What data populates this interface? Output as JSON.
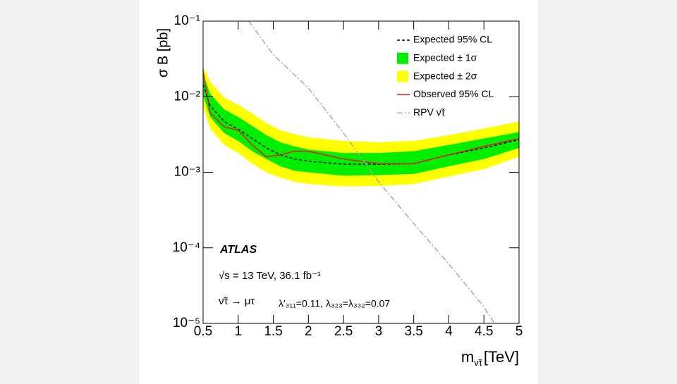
{
  "chart_data": {
    "type": "line",
    "ylabel": "σ B [pb]",
    "xlabel": {
      "main": "m",
      "sub": "ν̃τ",
      "unit": "[TeV]"
    },
    "yscale": "log",
    "xlim": [
      0.5,
      5
    ],
    "xticks": [
      0.5,
      1,
      1.5,
      2,
      2.5,
      3,
      3.5,
      4,
      4.5,
      5
    ],
    "ylim": [
      1e-05,
      0.1
    ],
    "yticks": [
      {
        "value": 1e-05,
        "label": "10⁻⁵"
      },
      {
        "value": 0.0001,
        "label": "10⁻⁴"
      },
      {
        "value": 0.001,
        "label": "10⁻³"
      },
      {
        "value": 0.01,
        "label": "10⁻²"
      },
      {
        "value": 0.1,
        "label": "10⁻¹"
      }
    ],
    "x": [
      0.5,
      0.6,
      0.8,
      1.0,
      1.2,
      1.4,
      1.6,
      1.8,
      2.0,
      2.5,
      3.0,
      3.5,
      4.0,
      4.5,
      5.0
    ],
    "series": [
      {
        "name": "Expected 95% CL",
        "kind": "line",
        "color": "#000000",
        "dash": "4,3",
        "values": [
          0.0145,
          0.0076,
          0.0047,
          0.0037,
          0.0028,
          0.0021,
          0.0017,
          0.0015,
          0.0014,
          0.00128,
          0.00128,
          0.0013,
          0.0017,
          0.0021,
          0.0027
        ]
      },
      {
        "name": "Expected ± 1σ",
        "kind": "band",
        "color": "#00ee00",
        "lower": [
          0.0105,
          0.0054,
          0.0033,
          0.0026,
          0.0019,
          0.0015,
          0.0012,
          0.00105,
          0.001,
          0.0009,
          0.00092,
          0.00095,
          0.0012,
          0.0015,
          0.0021
        ],
        "upper": [
          0.02,
          0.011,
          0.0068,
          0.0054,
          0.0041,
          0.0031,
          0.0025,
          0.0022,
          0.002,
          0.0018,
          0.0018,
          0.0019,
          0.0023,
          0.0028,
          0.0034
        ]
      },
      {
        "name": "Expected ± 2σ",
        "kind": "band",
        "color": "#ffff00",
        "lower": [
          0.0075,
          0.0038,
          0.0023,
          0.0018,
          0.0013,
          0.001,
          0.00085,
          0.00075,
          0.0007,
          0.00065,
          0.00066,
          0.0007,
          0.00088,
          0.0011,
          0.0016
        ],
        "upper": [
          0.025,
          0.016,
          0.0098,
          0.0078,
          0.006,
          0.0045,
          0.0036,
          0.0032,
          0.0029,
          0.0026,
          0.0025,
          0.0026,
          0.0031,
          0.0038,
          0.0047
        ]
      },
      {
        "name": "Observed 95% CL",
        "kind": "line",
        "color": "#e02020",
        "values": [
          0.022,
          0.0061,
          0.004,
          0.0036,
          0.0023,
          0.0016,
          0.0017,
          0.0019,
          0.0019,
          0.0015,
          0.0013,
          0.0013,
          0.0017,
          0.0022,
          0.0028
        ]
      },
      {
        "name": "RPV ν̃τ",
        "kind": "line",
        "color": "#aaaaaa",
        "dash": "8,3,2,3",
        "x": [
          1.15,
          1.5,
          2.0,
          2.5,
          3.0,
          3.5,
          4.0,
          4.5,
          4.65
        ],
        "values": [
          0.1,
          0.036,
          0.013,
          0.0033,
          0.00075,
          0.00021,
          6.1e-05,
          1.65e-05,
          1e-05
        ]
      }
    ],
    "annotations": [
      "ATLAS",
      "√s = 13 TeV, 36.1 fb⁻¹",
      "ν̃τ → μτ",
      "λ′₃₁₁=0.11, λ₃₂₃=λ₃₃₂=0.07"
    ]
  }
}
